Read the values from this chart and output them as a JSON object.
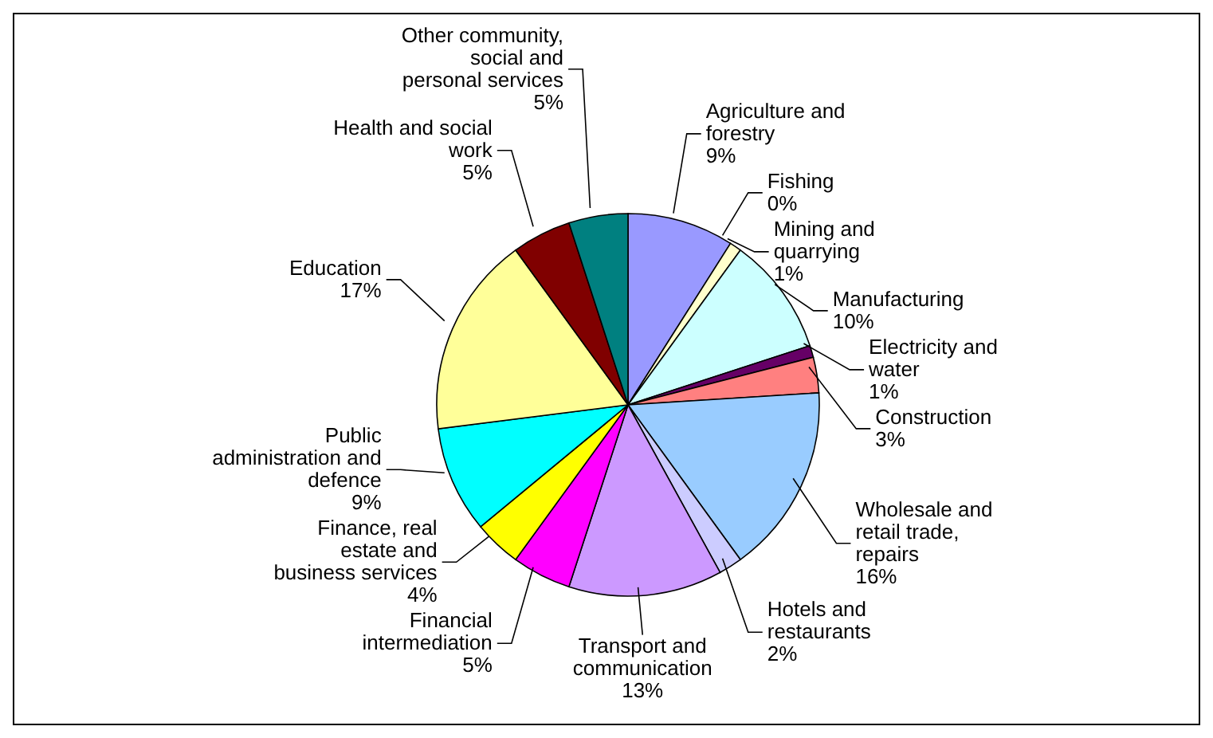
{
  "chart_data": {
    "type": "pie",
    "categories": [
      "Agriculture and forestry",
      "Fishing",
      "Mining and quarrying",
      "Manufacturing",
      "Electricity and water",
      "Construction",
      "Wholesale and retail trade, repairs",
      "Hotels and restaurants",
      "Transport and communication",
      "Financial intermediation",
      "Finance, real estate and business services",
      "Public administration and defence",
      "Education",
      "Health and social work",
      "Other community, social and personal services"
    ],
    "values": [
      9,
      0,
      1,
      10,
      1,
      3,
      16,
      2,
      13,
      5,
      4,
      9,
      17,
      5,
      5
    ],
    "value_labels": [
      "9%",
      "0%",
      "1%",
      "10%",
      "1%",
      "3%",
      "16%",
      "2%",
      "13%",
      "5%",
      "4%",
      "9%",
      "17%",
      "5%",
      "5%"
    ],
    "colors": [
      "#9999ff",
      "#993366",
      "#ffffcc",
      "#ccffff",
      "#660066",
      "#ff8080",
      "#99ccff",
      "#ccccff",
      "#cc99ff",
      "#ff00ff",
      "#ffff00",
      "#00ffff",
      "#ffff99",
      "#800000",
      "#008080"
    ],
    "legend": false
  }
}
